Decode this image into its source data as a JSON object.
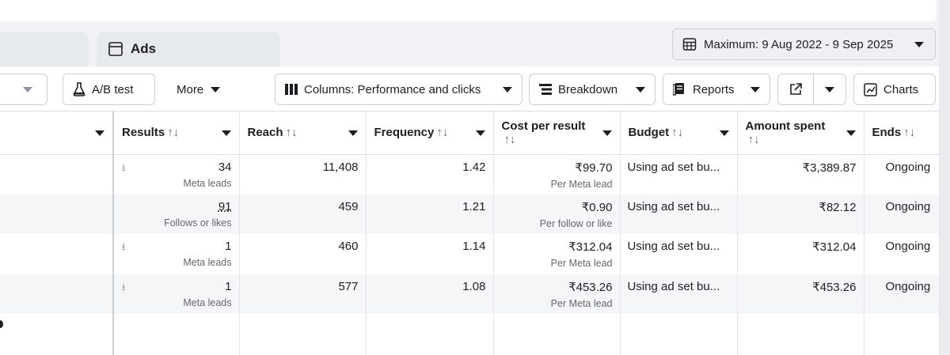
{
  "header": {
    "tab_label": "Ads",
    "date_range": "Maximum: 9 Aug 2022 - 9 Sep 2025"
  },
  "toolbar": {
    "ab_test": "A/B test",
    "more": "More",
    "columns": "Columns: Performance and clicks",
    "breakdown": "Breakdown",
    "reports": "Reports",
    "charts": "Charts"
  },
  "table": {
    "columns": [
      "Results",
      "Reach",
      "Frequency",
      "Cost per result",
      "Budget",
      "Amount spent",
      "Ends"
    ],
    "rows": [
      {
        "results": "34",
        "results_sub": "Meta leads",
        "reach": "11,408",
        "frequency": "1.42",
        "cost": "₹99.70",
        "cost_sub": "Per Meta lead",
        "budget": "Using ad set bu...",
        "spent": "₹3,389.87",
        "ends": "Ongoing"
      },
      {
        "results": "91",
        "results_sub": "Follows or likes",
        "reach": "459",
        "frequency": "1.21",
        "cost": "₹0.90",
        "cost_sub": "Per follow or like",
        "budget": "Using ad set bu...",
        "spent": "₹82.12",
        "ends": "Ongoing"
      },
      {
        "results": "1",
        "results_sub": "Meta leads",
        "reach": "460",
        "frequency": "1.14",
        "cost": "₹312.04",
        "cost_sub": "Per Meta lead",
        "budget": "Using ad set bu...",
        "spent": "₹312.04",
        "ends": "Ongoing"
      },
      {
        "results": "1",
        "results_sub": "Meta leads",
        "reach": "577",
        "frequency": "1.08",
        "cost": "₹453.26",
        "cost_sub": "Per Meta lead",
        "budget": "Using ad set bu...",
        "spent": "₹453.26",
        "ends": "Ongoing"
      }
    ]
  },
  "colors": {
    "accent_border": "#cbd0d6",
    "alt_row": "#f5f6f7",
    "sub_text": "#65676b"
  }
}
